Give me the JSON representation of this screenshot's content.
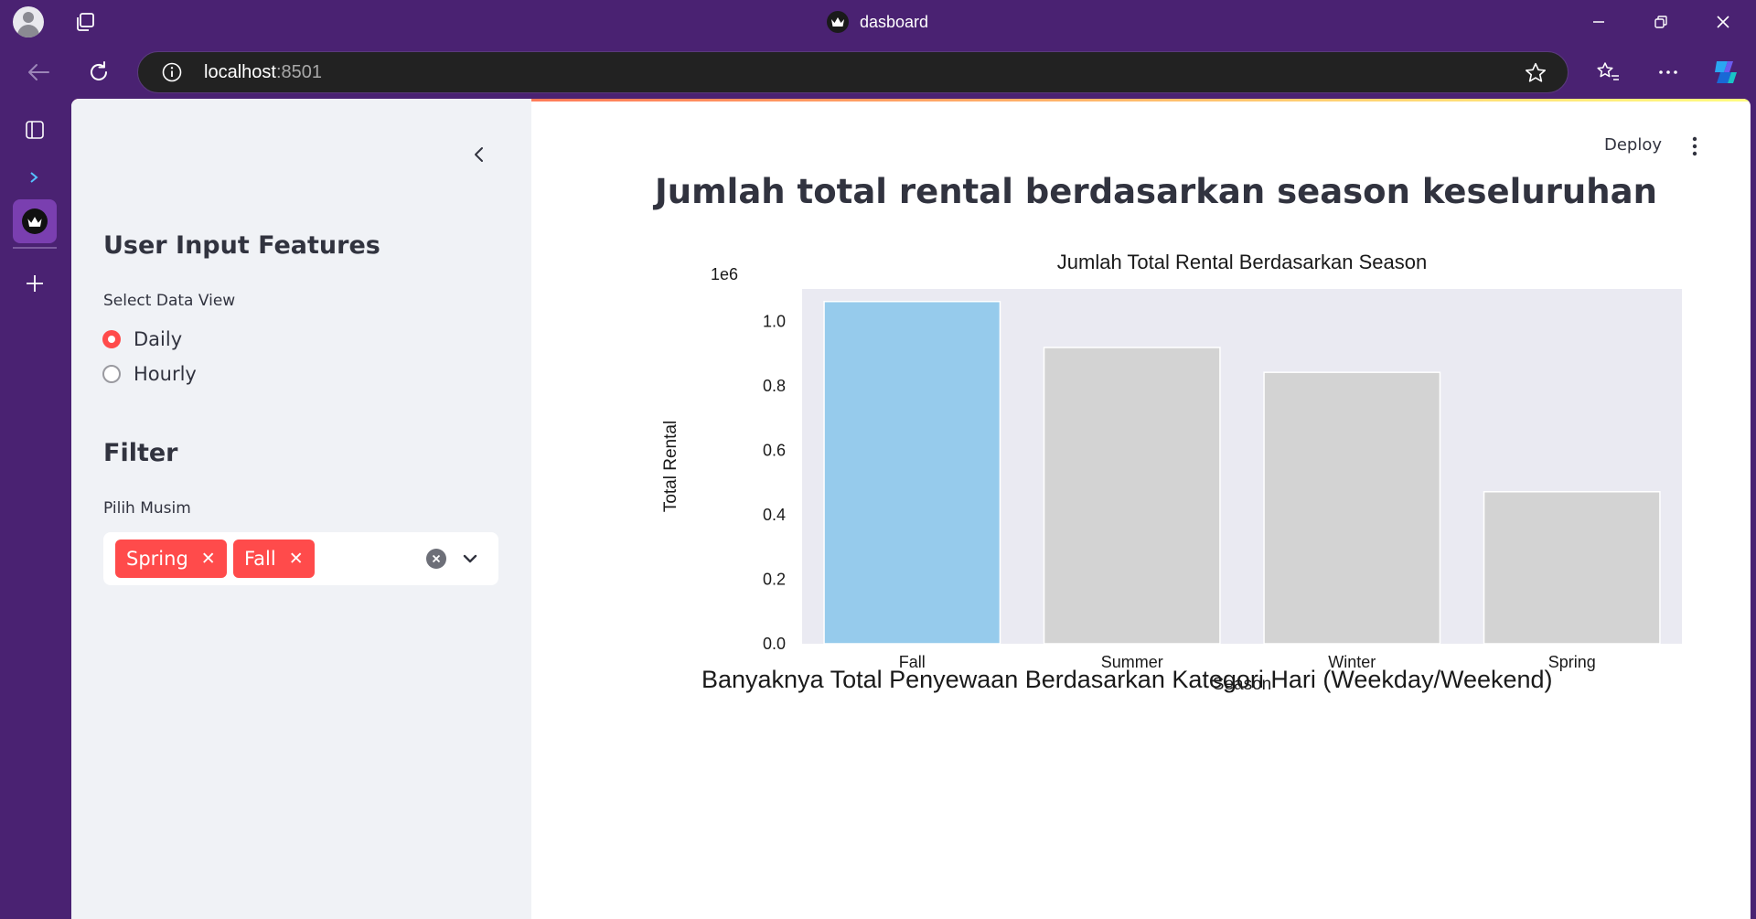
{
  "browser": {
    "tab_title": "dasboard",
    "url_host": "localhost",
    "url_port": ":8501"
  },
  "sidebar": {
    "header": "User Input Features",
    "data_view_label": "Select Data View",
    "data_view_options": [
      {
        "label": "Daily",
        "selected": true
      },
      {
        "label": "Hourly",
        "selected": false
      }
    ],
    "filter_header": "Filter",
    "season_label": "Pilih Musim",
    "selected_seasons": [
      "Spring",
      "Fall"
    ]
  },
  "toolbar": {
    "deploy_label": "Deploy"
  },
  "main": {
    "title": "Jumlah total rental berdasarkan season keseluruhan",
    "next_section_title": "Banyaknya Total Penyewaan Berdasarkan Kategori Hari (Weekday/Weekend)"
  },
  "colors": {
    "accent": "#ff4b4b",
    "highlight_bar": "#96cbec",
    "bar": "#d3d3d3",
    "plot_bg": "#eaeaf2"
  },
  "chart_data": {
    "type": "bar",
    "title": "Jumlah Total Rental Berdasarkan Season",
    "xlabel": "Season",
    "ylabel": "Total Rental",
    "y_offset_label": "1e6",
    "categories": [
      "Fall",
      "Summer",
      "Winter",
      "Spring"
    ],
    "values": [
      1061129,
      918589,
      841613,
      471348
    ],
    "highlight": "Fall",
    "ylim": [
      0,
      1.1
    ],
    "yticks": [
      "0.0",
      "0.2",
      "0.4",
      "0.6",
      "0.8",
      "1.0"
    ],
    "grid": false
  }
}
